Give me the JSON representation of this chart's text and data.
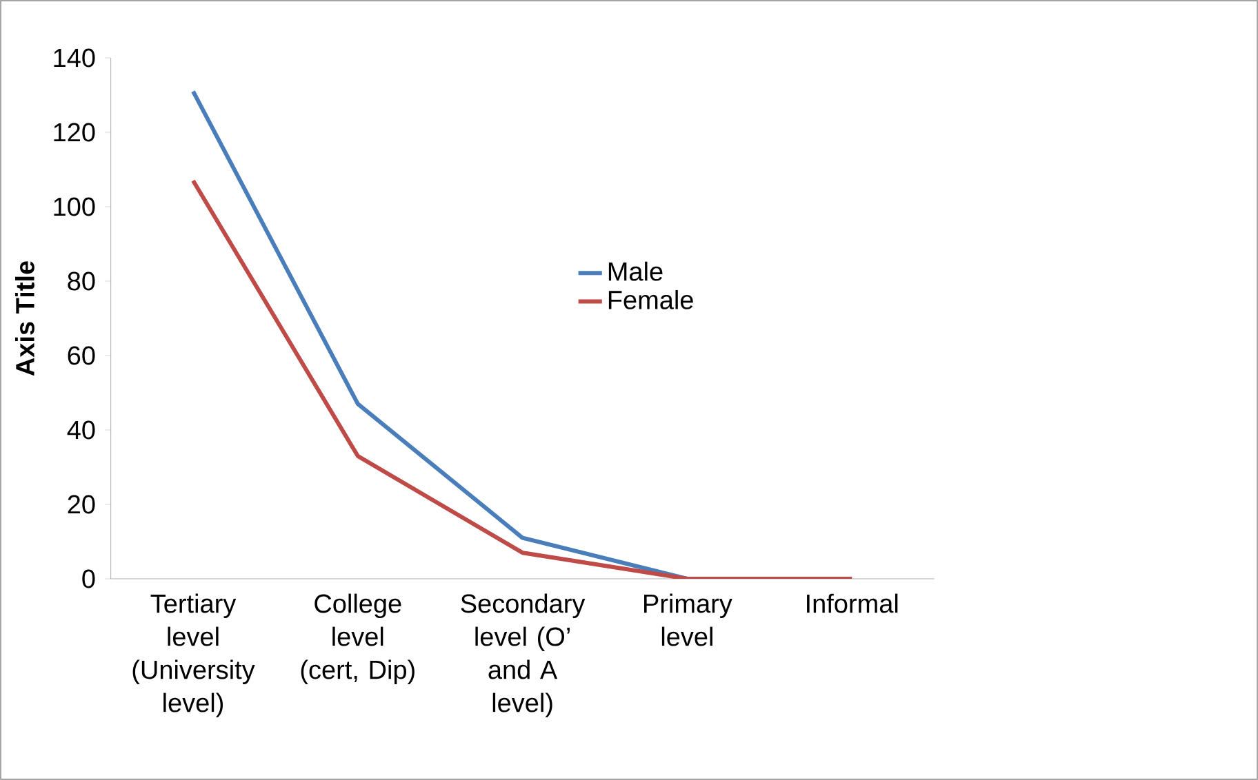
{
  "chart_data": {
    "type": "line",
    "ylabel": "Axis Title",
    "categories": [
      "Tertiary level (University level)",
      "College level (cert, Dip)",
      "Secondary level (O’ and A level)",
      "Primary level",
      "Informal"
    ],
    "series": [
      {
        "name": "Male",
        "color": "#4a7ebb",
        "values": [
          131,
          47,
          11,
          0,
          0
        ]
      },
      {
        "name": "Female",
        "color": "#be4b48",
        "values": [
          107,
          33,
          7,
          0,
          0
        ]
      }
    ],
    "ylim": [
      0,
      140
    ],
    "yticks": [
      0,
      20,
      40,
      60,
      80,
      100,
      120,
      140
    ],
    "grid": false,
    "legend": "right",
    "marker": "none"
  }
}
